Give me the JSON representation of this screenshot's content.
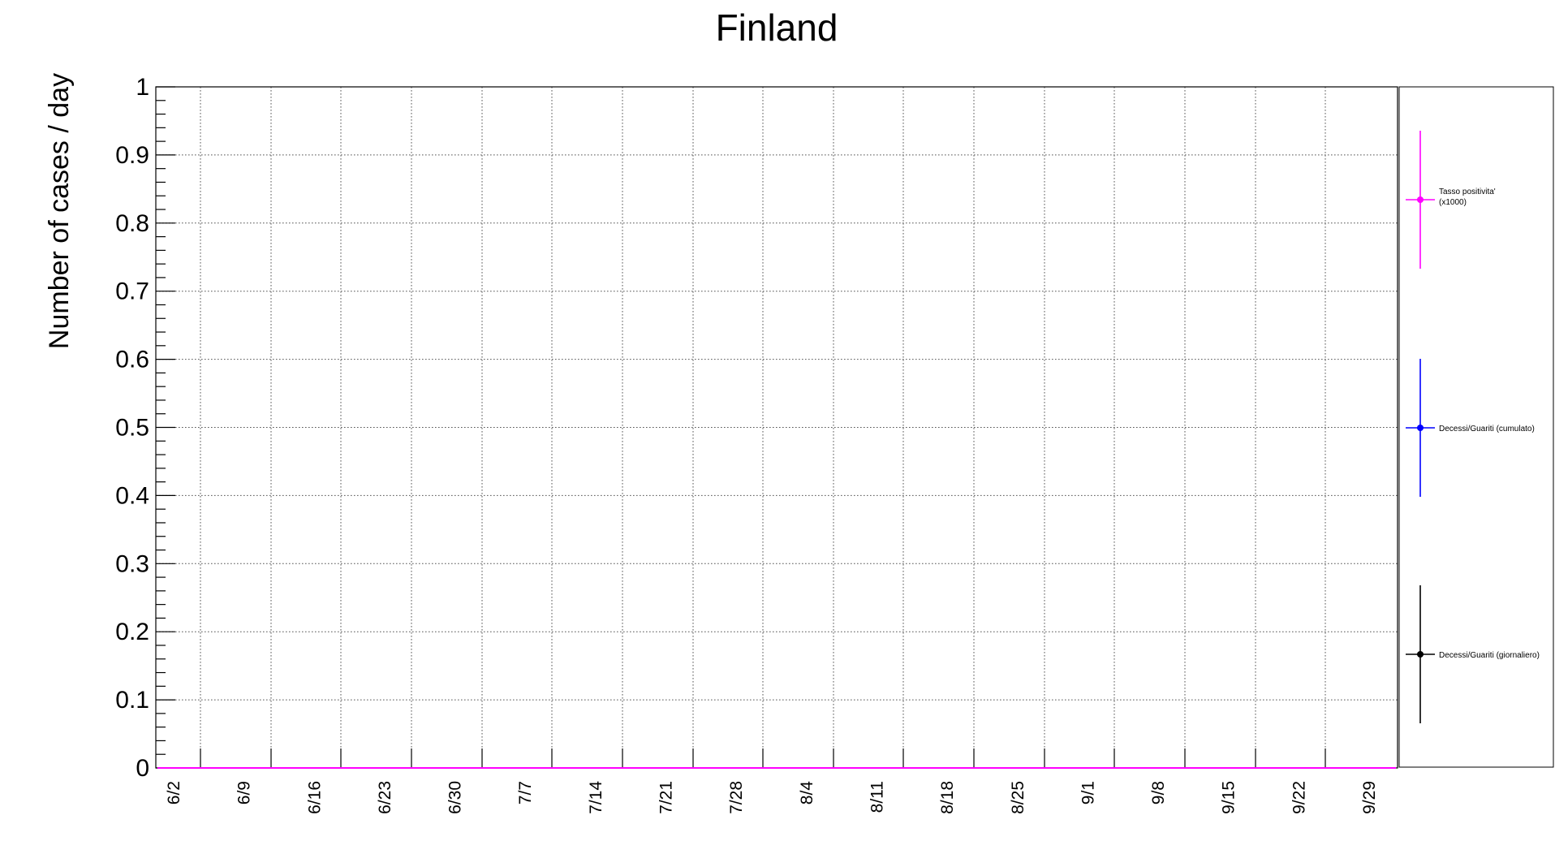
{
  "chart_data": {
    "type": "line",
    "title": "Finland",
    "ylabel": "Number of cases / day",
    "xlabel": "",
    "ylim": [
      0,
      1
    ],
    "yticks": [
      "0",
      "0.1",
      "0.2",
      "0.3",
      "0.4",
      "0.5",
      "0.6",
      "0.7",
      "0.8",
      "0.9",
      "1"
    ],
    "xticks": [
      "6/2",
      "6/9",
      "6/16",
      "6/23",
      "6/30",
      "7/7",
      "7/14",
      "7/21",
      "7/28",
      "8/4",
      "8/11",
      "8/18",
      "8/25",
      "9/1",
      "9/8",
      "9/15",
      "9/22",
      "9/29"
    ],
    "grid": true,
    "legend_placement": "right",
    "series": [
      {
        "name": "Tasso positivita' (x1000)",
        "legend_lines": [
          "Tasso positivita'",
          "(x1000)"
        ],
        "color": "#ff00ff",
        "values": [
          0,
          0,
          0,
          0,
          0,
          0,
          0,
          0,
          0,
          0,
          0,
          0,
          0,
          0,
          0,
          0,
          0,
          0
        ]
      },
      {
        "name": "Decessi/Guariti (cumulato)",
        "legend_lines": [
          "Decessi/Guariti (cumulato)"
        ],
        "color": "#0000ff",
        "values": [
          0,
          0,
          0,
          0,
          0,
          0,
          0,
          0,
          0,
          0,
          0,
          0,
          0,
          0,
          0,
          0,
          0,
          0
        ]
      },
      {
        "name": "Decessi/Guariti (giornaliero)",
        "legend_lines": [
          "Decessi/Guariti (giornaliero)"
        ],
        "color": "#000000",
        "values": [
          0,
          0,
          0,
          0,
          0,
          0,
          0,
          0,
          0,
          0,
          0,
          0,
          0,
          0,
          0,
          0,
          0,
          0
        ]
      }
    ]
  }
}
